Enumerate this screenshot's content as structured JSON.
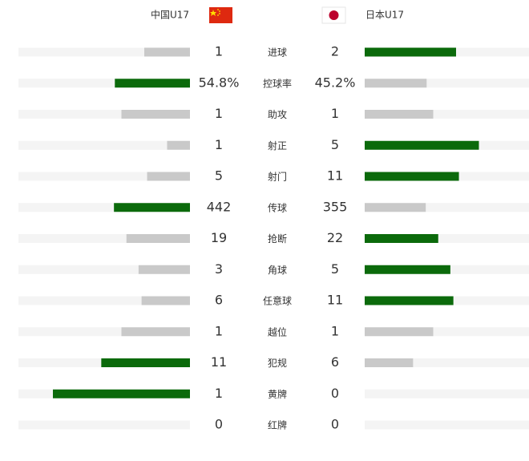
{
  "chart_data": {
    "type": "comparison",
    "categories": [
      "进球",
      "控球率",
      "助攻",
      "射正",
      "射门",
      "传球",
      "抢断",
      "角球",
      "任意球",
      "越位",
      "犯规",
      "黄牌",
      "红牌"
    ],
    "series": [
      {
        "name": "中国U17",
        "values": [
          1,
          54.8,
          1,
          1,
          5,
          442,
          19,
          3,
          6,
          1,
          11,
          1,
          0
        ],
        "value_labels": [
          "1",
          "54.8%",
          "1",
          "1",
          "5",
          "442",
          "19",
          "3",
          "6",
          "1",
          "11",
          "1",
          "0"
        ]
      },
      {
        "name": "日本U17",
        "values": [
          2,
          45.2,
          1,
          5,
          11,
          355,
          22,
          5,
          11,
          1,
          6,
          0,
          0
        ],
        "value_labels": [
          "2",
          "45.2%",
          "1",
          "5",
          "11",
          "355",
          "22",
          "5",
          "11",
          "1",
          "6",
          "0",
          "0"
        ]
      }
    ],
    "lead_color": "#0b6a0b",
    "color": "#c9c9c9",
    "track_color": "#f4f4f4"
  }
}
